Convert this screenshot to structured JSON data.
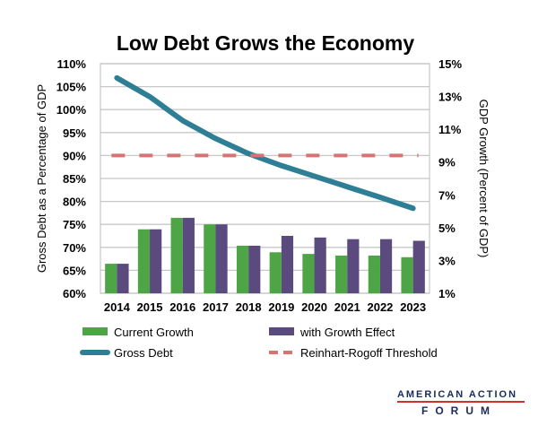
{
  "chart_data": {
    "type": "bar+line",
    "title": "Low Debt Grows the Economy",
    "ylabel_left": "Gross Debt as a Percentage of GDP",
    "ylabel_right": "GDP Growth (Percent of GDP)",
    "ylim_left": [
      60,
      110
    ],
    "ylim_right": [
      1,
      15
    ],
    "yticks_left": [
      "60%",
      "65%",
      "70%",
      "75%",
      "80%",
      "85%",
      "90%",
      "95%",
      "100%",
      "105%",
      "110%"
    ],
    "yticks_right": [
      "1%",
      "3%",
      "5%",
      "7%",
      "9%",
      "11%",
      "13%",
      "15%"
    ],
    "grid": true,
    "categories": [
      "2014",
      "2015",
      "2016",
      "2017",
      "2018",
      "2019",
      "2020",
      "2021",
      "2022",
      "2023"
    ],
    "series": [
      {
        "name": "Current Growth",
        "type": "bar",
        "axis": "right",
        "color": "#4ea546",
        "values": [
          2.8,
          4.9,
          5.6,
          5.2,
          3.9,
          3.5,
          3.4,
          3.3,
          3.3,
          3.2
        ]
      },
      {
        "name": "with Growth Effect",
        "type": "bar",
        "axis": "right",
        "color": "#5b4a7d",
        "values": [
          2.8,
          4.9,
          5.6,
          5.2,
          3.9,
          4.5,
          4.4,
          4.3,
          4.3,
          4.2
        ]
      },
      {
        "name": "Gross Debt",
        "type": "line",
        "axis": "left",
        "color": "#2e7f96",
        "values": [
          106.9,
          102.8,
          97.6,
          93.7,
          90.4,
          87.8,
          85.5,
          83.2,
          80.9,
          78.5
        ]
      },
      {
        "name": "Reinhart-Rogoff Threshold",
        "type": "dashed-line",
        "axis": "left",
        "color": "#d67373",
        "values": [
          90,
          90,
          90,
          90,
          90,
          90,
          90,
          90,
          90,
          90
        ]
      }
    ],
    "legend_placement": "bottom"
  },
  "logo": {
    "line1": "AMERICAN ACTION",
    "line2": "FORUM"
  }
}
